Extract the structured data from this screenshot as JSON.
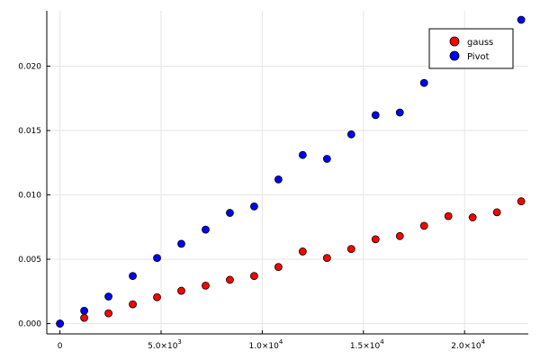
{
  "chart_data": {
    "type": "scatter",
    "title": "",
    "xlabel": "",
    "ylabel": "",
    "xlim": [
      -650,
      23150
    ],
    "ylim": [
      -0.0008,
      0.0243
    ],
    "grid": true,
    "legend_position": "top-right",
    "x_ticks": [
      {
        "value": 0,
        "label": "0",
        "exp": ""
      },
      {
        "value": 5000,
        "label": "5.0×10",
        "exp": "3"
      },
      {
        "value": 10000,
        "label": "1.0×10",
        "exp": "4"
      },
      {
        "value": 15000,
        "label": "1.5×10",
        "exp": "4"
      },
      {
        "value": 20000,
        "label": "2.0×10",
        "exp": "4"
      }
    ],
    "y_ticks": [
      {
        "value": 0.0,
        "label": "0.000"
      },
      {
        "value": 0.005,
        "label": "0.005"
      },
      {
        "value": 0.01,
        "label": "0.010"
      },
      {
        "value": 0.015,
        "label": "0.015"
      },
      {
        "value": 0.02,
        "label": "0.020"
      }
    ],
    "x": [
      0,
      1200,
      2400,
      3600,
      4800,
      6000,
      7200,
      8400,
      9600,
      10800,
      12000,
      13200,
      14400,
      15600,
      16800,
      18000,
      19200,
      20400,
      21600,
      22800
    ],
    "series": [
      {
        "name": "gauss",
        "color": "#ff0000",
        "x": [
          0,
          1200,
          2400,
          3600,
          4800,
          6000,
          7200,
          8400,
          9600,
          10800,
          12000,
          13200,
          14400,
          15600,
          16800,
          18000,
          19200,
          20400,
          21600,
          22800
        ],
        "values": [
          0.0,
          0.00045,
          0.0008,
          0.0015,
          0.00205,
          0.00255,
          0.00295,
          0.0034,
          0.0037,
          0.0044,
          0.0056,
          0.0051,
          0.0058,
          0.00655,
          0.0068,
          0.0076,
          0.00835,
          0.00825,
          0.00865,
          0.0095
        ]
      },
      {
        "name": "Pivot",
        "color": "#0000ff",
        "x": [
          0,
          1200,
          2400,
          3600,
          4800,
          6000,
          7200,
          8400,
          9600,
          10800,
          12000,
          13200,
          14400,
          15600,
          16800,
          18000,
          22800
        ],
        "values": [
          0.0,
          0.001,
          0.0021,
          0.0037,
          0.0051,
          0.0062,
          0.0073,
          0.0086,
          0.0091,
          0.0112,
          0.0131,
          0.0128,
          0.0147,
          0.0162,
          0.0164,
          0.0187,
          0.0236
        ]
      }
    ]
  }
}
